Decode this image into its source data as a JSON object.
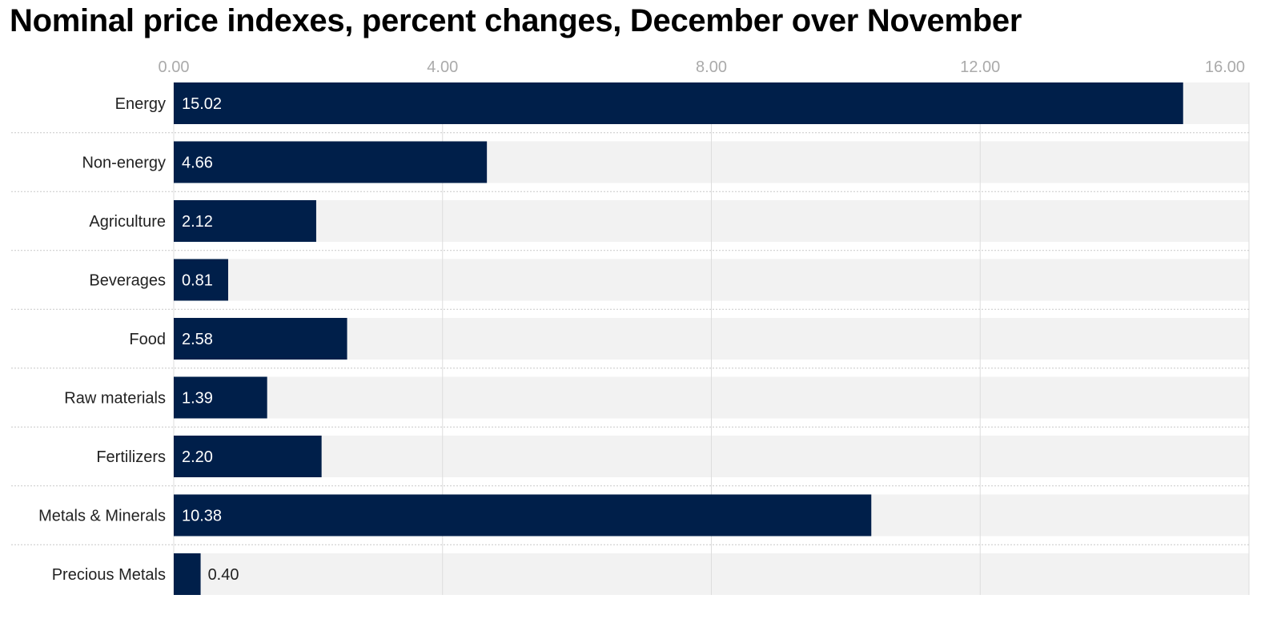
{
  "chart_data": {
    "type": "bar",
    "orientation": "horizontal",
    "title": "Nominal price indexes, percent changes, December over November",
    "categories": [
      "Energy",
      "Non-energy",
      "Agriculture",
      "Beverages",
      "Food",
      "Raw materials",
      "Fertilizers",
      "Metals & Minerals",
      "Precious Metals"
    ],
    "values": [
      15.02,
      4.66,
      2.12,
      0.81,
      2.58,
      1.39,
      2.2,
      10.38,
      0.4
    ],
    "value_labels": [
      "15.02",
      "4.66",
      "2.12",
      "0.81",
      "2.58",
      "1.39",
      "2.20",
      "10.38",
      "0.40"
    ],
    "xlim": [
      0,
      16
    ],
    "xticks": [
      0,
      4,
      8,
      12,
      16
    ],
    "xtick_labels": [
      "0.00",
      "4.00",
      "8.00",
      "12.00",
      "16.00"
    ],
    "xaxis_position": "top",
    "grid": true,
    "legend": "none",
    "bar_color": "#001f4a",
    "track_color": "#f2f2f2",
    "xlabel": "",
    "ylabel": ""
  }
}
